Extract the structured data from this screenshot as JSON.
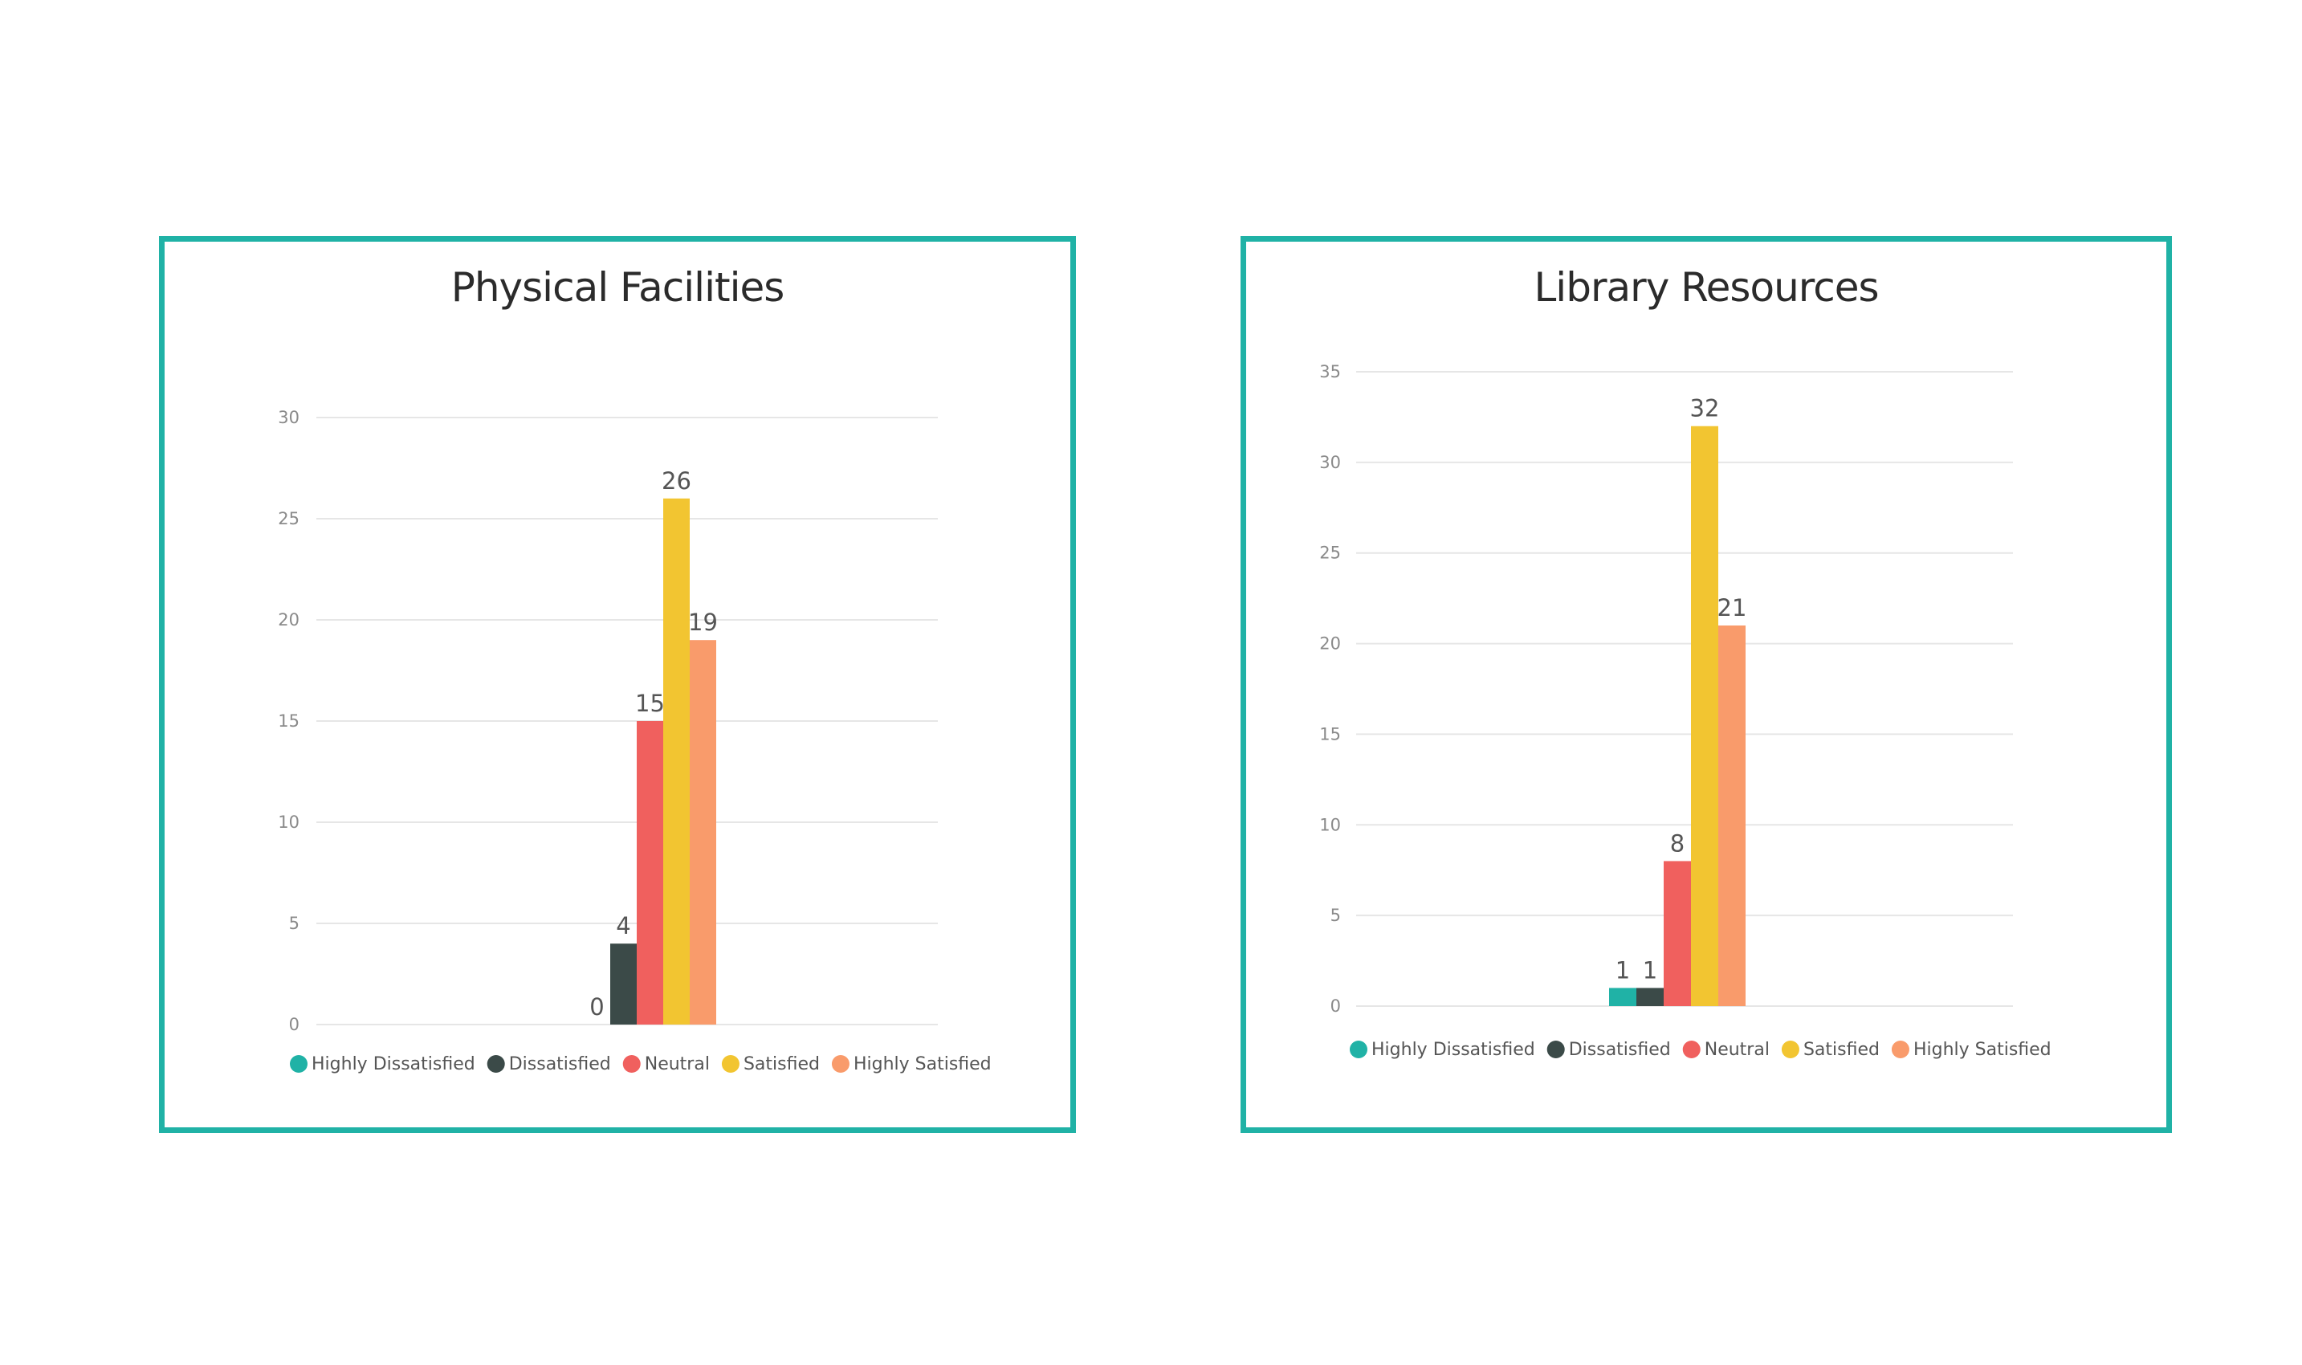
{
  "chart_data": [
    {
      "type": "bar",
      "title": "Physical Facilities",
      "categories": [
        ""
      ],
      "series": [
        {
          "name": "Highly Dissatisfied",
          "values": [
            0
          ],
          "color": "#20b2a6"
        },
        {
          "name": "Dissatisfied",
          "values": [
            4
          ],
          "color": "#3b4a48"
        },
        {
          "name": "Neutral",
          "values": [
            15
          ],
          "color": "#f0605e"
        },
        {
          "name": "Satisfied",
          "values": [
            26
          ],
          "color": "#f2c531"
        },
        {
          "name": "Highly Satisfied",
          "values": [
            19
          ],
          "color": "#f99b6b"
        }
      ],
      "ylim": [
        0,
        30
      ],
      "yticks": [
        "0",
        "5",
        "10",
        "15",
        "20",
        "25",
        "30"
      ],
      "xlabel": "",
      "ylabel": "",
      "grid": true,
      "legend": "bottom"
    },
    {
      "type": "bar",
      "title": "Library Resources",
      "categories": [
        ""
      ],
      "series": [
        {
          "name": "Highly Dissatisfied",
          "values": [
            1
          ],
          "color": "#20b2a6"
        },
        {
          "name": "Dissatisfied",
          "values": [
            1
          ],
          "color": "#3b4a48"
        },
        {
          "name": "Neutral",
          "values": [
            8
          ],
          "color": "#f0605e"
        },
        {
          "name": "Satisfied",
          "values": [
            32
          ],
          "color": "#f2c531"
        },
        {
          "name": "Highly Satisfied",
          "values": [
            21
          ],
          "color": "#f99b6b"
        }
      ],
      "ylim": [
        0,
        35
      ],
      "yticks": [
        "0",
        "5",
        "10",
        "15",
        "20",
        "25",
        "30",
        "35"
      ],
      "xlabel": "",
      "ylabel": "",
      "grid": true,
      "legend": "bottom"
    }
  ]
}
